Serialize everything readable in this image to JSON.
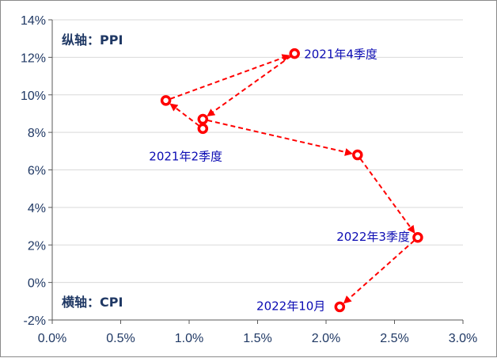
{
  "chart_data": {
    "type": "scatter",
    "connected": true,
    "marker": "hollow-circle",
    "line_style": "dashed-arrow",
    "x_axis_note": "横轴：CPI",
    "y_axis_note": "纵轴：PPI",
    "xlim": [
      0.0,
      3.0
    ],
    "ylim": [
      -2,
      14
    ],
    "xticks": [
      "0.0%",
      "0.5%",
      "1.0%",
      "1.5%",
      "2.0%",
      "2.5%",
      "3.0%"
    ],
    "yticks": [
      "14%",
      "12%",
      "10%",
      "8%",
      "6%",
      "4%",
      "2%",
      "0%",
      "-2%"
    ],
    "grid": "horizontal",
    "points": [
      {
        "x": 1.1,
        "y": 8.2
      },
      {
        "x": 0.83,
        "y": 9.7
      },
      {
        "x": 1.77,
        "y": 12.2
      },
      {
        "x": 1.1,
        "y": 8.7
      },
      {
        "x": 2.23,
        "y": 6.8
      },
      {
        "x": 2.67,
        "y": 2.4
      },
      {
        "x": 2.1,
        "y": -1.3
      }
    ],
    "annotations": [
      {
        "text": "2021年4季度",
        "point": 2
      },
      {
        "text": "2021年2季度",
        "point": 0
      },
      {
        "text": "2022年3季度",
        "point": 5
      },
      {
        "text": "2022年10月",
        "point": 6
      }
    ],
    "colors": {
      "series": "#ff0000",
      "annotation": "#0b0bb3",
      "axis_text": "#1f3864"
    }
  }
}
